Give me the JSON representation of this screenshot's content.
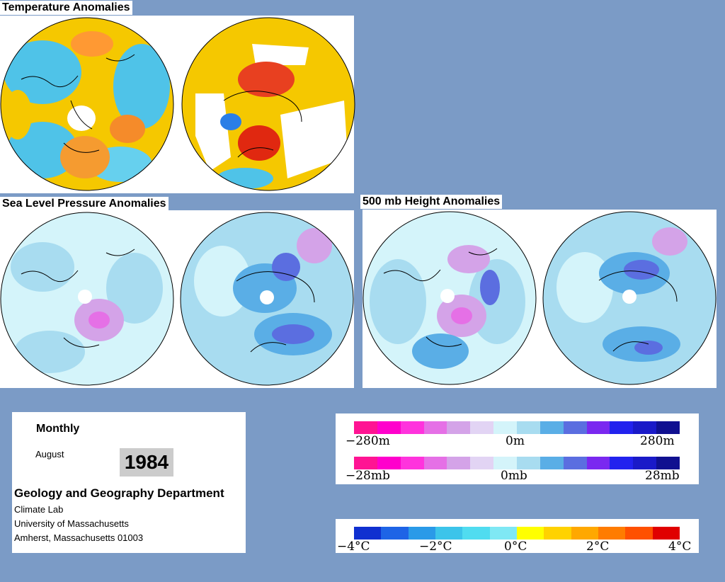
{
  "sections": {
    "temperature": "Temperature Anomalies",
    "slp": "Sea Level Pressure Anomalies",
    "height500": "500 mb Height Anomalies"
  },
  "info": {
    "period": "Monthly",
    "month": "August",
    "year": "1984",
    "department": "Geology and Geography Department",
    "lab": "Climate Lab",
    "university": "University of Massachusetts",
    "address": "Amherst, Massachusetts 01003"
  },
  "legends": {
    "height": {
      "labels": [
        "−280m",
        "0m",
        "280m"
      ]
    },
    "pressure": {
      "labels": [
        "−28mb",
        "0mb",
        "28mb"
      ]
    },
    "temperature": {
      "labels": [
        "−4°C",
        "−2°C",
        "0°C",
        "2°C",
        "4°C"
      ]
    }
  },
  "colors": {
    "background": "#7b9bc6",
    "pressure_scale": [
      "#ff1493",
      "#ff00cc",
      "#ff33dd",
      "#e570e6",
      "#d4a3e8",
      "#e2d4f4",
      "#d4f4fa",
      "#a8dcf0",
      "#5aaee6",
      "#5b6ee0",
      "#7a28f0",
      "#2222ee",
      "#1a1ac8",
      "#101090"
    ],
    "temperature_scale": [
      "#1030d0",
      "#1e64e6",
      "#2a9ae8",
      "#3cc4ea",
      "#50dcf0",
      "#7fe8f4",
      "#ffff00",
      "#ffd200",
      "#ffa800",
      "#ff7c00",
      "#ff5000",
      "#e00000"
    ]
  }
}
